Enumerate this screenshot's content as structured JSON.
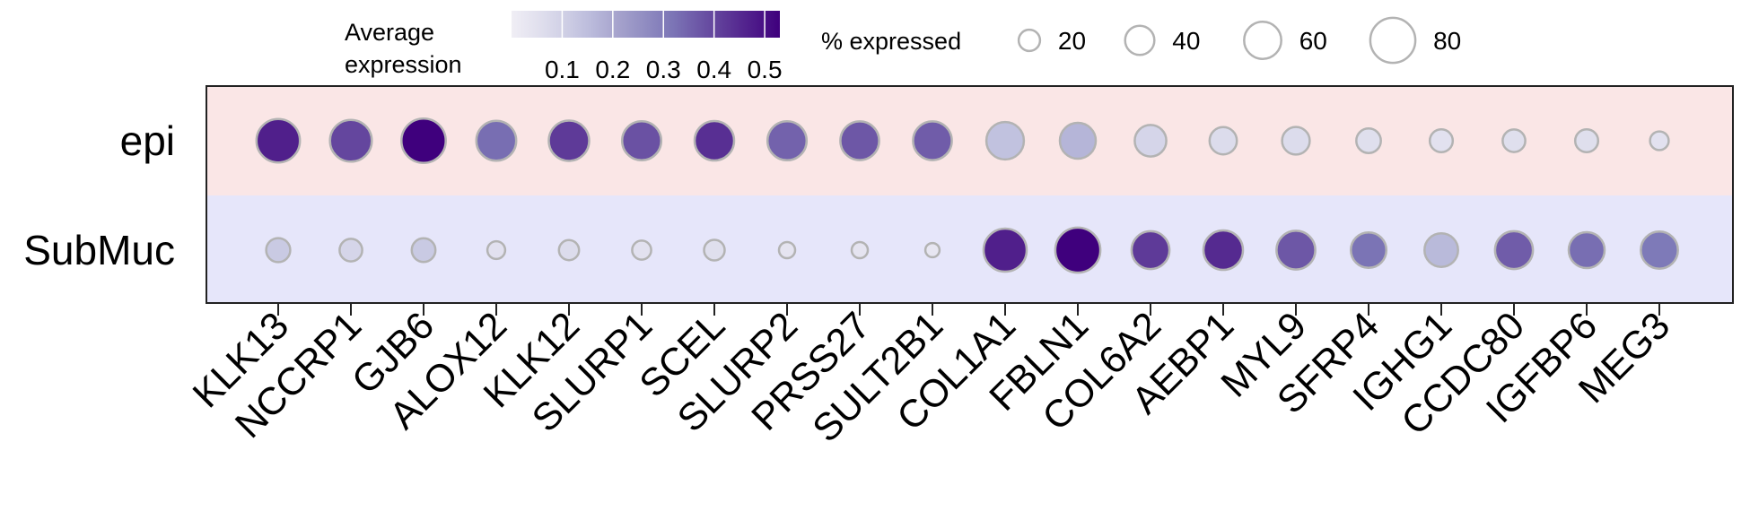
{
  "chart_data": {
    "type": "dotplot",
    "rows": [
      "epi",
      "SubMuc"
    ],
    "genes": [
      "KLK13",
      "NCCRP1",
      "GJB6",
      "ALOX12",
      "KLK12",
      "SLURP1",
      "SCEL",
      "SLURP2",
      "PRSS27",
      "SULT2B1",
      "COL1A1",
      "FBLN1",
      "COL6A2",
      "AEBP1",
      "MYL9",
      "SFRP4",
      "IGHG1",
      "CCDC80",
      "IGFBP6",
      "MEG3"
    ],
    "avg_expression": [
      [
        0.47,
        0.4,
        0.53,
        0.33,
        0.42,
        0.38,
        0.44,
        0.35,
        0.37,
        0.36,
        0.14,
        0.17,
        0.09,
        0.07,
        0.07,
        0.06,
        0.05,
        0.06,
        0.06,
        0.05
      ],
      [
        0.12,
        0.09,
        0.12,
        0.05,
        0.07,
        0.05,
        0.06,
        0.04,
        0.04,
        0.03,
        0.47,
        0.54,
        0.42,
        0.45,
        0.37,
        0.32,
        0.16,
        0.36,
        0.33,
        0.31
      ]
    ],
    "pct_expressed": [
      [
        76,
        72,
        78,
        67,
        68,
        65,
        66,
        65,
        64,
        64,
        61,
        57,
        46,
        35,
        36,
        28,
        24,
        23,
        24,
        13
      ],
      [
        27,
        23,
        26,
        11,
        17,
        14,
        18,
        7,
        7,
        2,
        75,
        80,
        62,
        66,
        64,
        56,
        51,
        62,
        57,
        60
      ]
    ],
    "color_legend": {
      "title": [
        "Average",
        "expression"
      ],
      "range": [
        0.0,
        0.53
      ],
      "ticks": [
        0.1,
        0.2,
        0.3,
        0.4,
        0.5
      ],
      "low_color": "#efeff8",
      "high_color": "#3f007d"
    },
    "size_legend": {
      "title": "% expressed",
      "values": [
        20,
        40,
        60,
        80
      ]
    },
    "row_backgrounds": {
      "epi": "#fae6e6",
      "SubMuc": "#e6e6fa"
    },
    "dot_edge_color": "#b3b3b3"
  }
}
